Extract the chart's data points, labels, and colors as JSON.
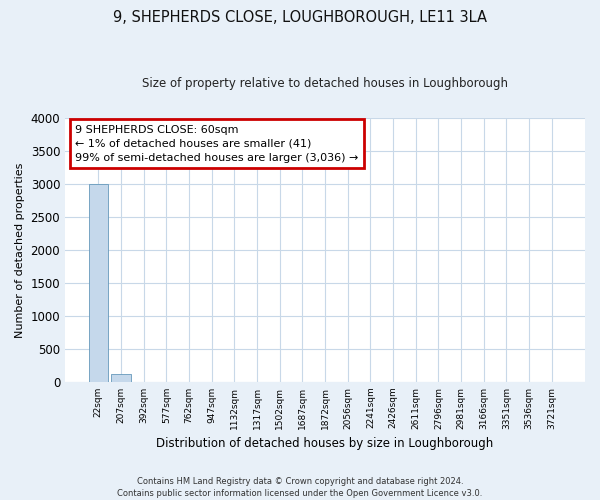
{
  "title": "9, SHEPHERDS CLOSE, LOUGHBOROUGH, LE11 3LA",
  "subtitle": "Size of property relative to detached houses in Loughborough",
  "xlabel": "Distribution of detached houses by size in Loughborough",
  "ylabel": "Number of detached properties",
  "footnote1": "Contains HM Land Registry data © Crown copyright and database right 2024.",
  "footnote2": "Contains public sector information licensed under the Open Government Licence v3.0.",
  "categories": [
    "22sqm",
    "207sqm",
    "392sqm",
    "577sqm",
    "762sqm",
    "947sqm",
    "1132sqm",
    "1317sqm",
    "1502sqm",
    "1687sqm",
    "1872sqm",
    "2056sqm",
    "2241sqm",
    "2426sqm",
    "2611sqm",
    "2796sqm",
    "2981sqm",
    "3166sqm",
    "3351sqm",
    "3536sqm",
    "3721sqm"
  ],
  "values": [
    3000,
    115,
    0,
    0,
    0,
    0,
    0,
    0,
    0,
    0,
    0,
    0,
    0,
    0,
    0,
    0,
    0,
    0,
    0,
    0,
    0
  ],
  "bar_color": "#c5d8eb",
  "bar_edge_color": "#6699bb",
  "ylim": [
    0,
    4000
  ],
  "yticks": [
    0,
    500,
    1000,
    1500,
    2000,
    2500,
    3000,
    3500,
    4000
  ],
  "annotation_text": "9 SHEPHERDS CLOSE: 60sqm\n← 1% of detached houses are smaller (41)\n99% of semi-detached houses are larger (3,036) →",
  "annotation_box_color": "#cc0000",
  "annotation_box_bg": "#ffffff",
  "grid_color": "#c8d8e8",
  "bg_color": "#e8f0f8",
  "plot_bg_color": "#ffffff"
}
